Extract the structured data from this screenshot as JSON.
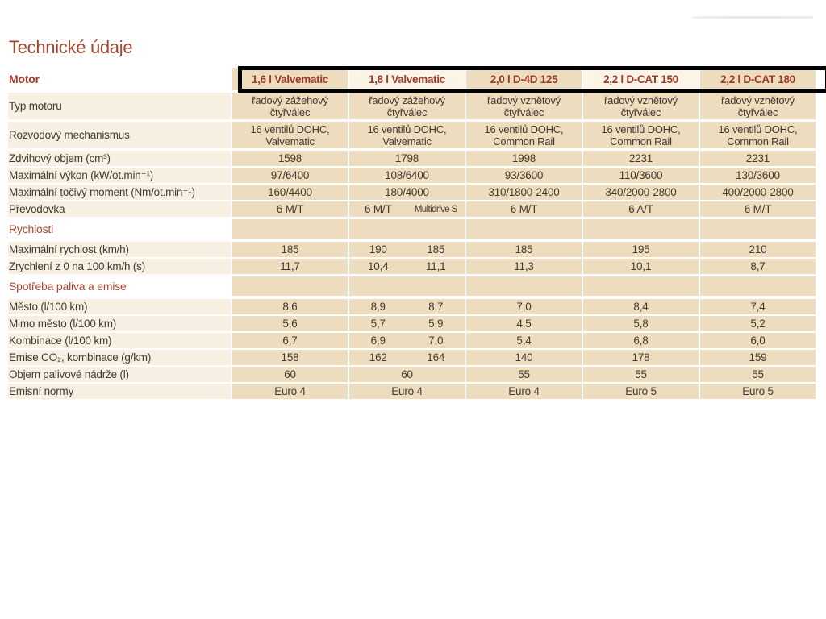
{
  "page": {
    "title": "Technické údaje"
  },
  "colors": {
    "accent_red": "#9d3b2a",
    "section_red": "#b0462f",
    "cell_beige": "#eddcbd",
    "label_cream": "#f7efe1",
    "header_cream": "#fbf4e7",
    "text_dark": "#433b30",
    "highlight_border": "#000000"
  },
  "table": {
    "header": {
      "label": "Motor",
      "columns": [
        "1,6 l Valvematic",
        "1,8 l Valvematic",
        "2,0 l D-4D 125",
        "2,2 l D-CAT 150",
        "2,2 l D-CAT 180"
      ]
    },
    "rows": [
      {
        "label": "Typ motoru",
        "cells": [
          "řadový zážehový čtyřválec",
          "řadový zážehový čtyřválec",
          "řadový vznětový čtyřválec",
          "řadový vznětový čtyřválec",
          "řadový vznětový čtyřválec"
        ]
      },
      {
        "label": "Rozvodový mechanismus",
        "cells": [
          "16 ventilů DOHC, Valvematic",
          "16 ventilů DOHC, Valvematic",
          "16 ventilů DOHC, Common Rail",
          "16 ventilů DOHC, Common Rail",
          "16 ventilů DOHC, Common Rail"
        ]
      },
      {
        "label": "Zdvihový objem (cm³)",
        "cells": [
          "1598",
          "1798",
          "1998",
          "2231",
          "2231"
        ]
      },
      {
        "label": "Maximální výkon (kW/ot.min⁻¹)",
        "cells": [
          "97/6400",
          "108/6400",
          "93/3600",
          "110/3600",
          "130/3600"
        ]
      },
      {
        "label": "Maximální točivý moment (Nm/ot.min⁻¹)",
        "cells": [
          "160/4400",
          "180/4000",
          "310/1800-2400",
          "340/2000-2800",
          "400/2000-2800"
        ]
      },
      {
        "label": "Převodovka",
        "cells": [
          "6 M/T",
          [
            "6 M/T",
            "Multidrive S"
          ],
          "6 M/T",
          "6 A/T",
          "6 M/T"
        ]
      },
      {
        "label": "Rychlosti",
        "section": true
      },
      {
        "label": "Maximální rychlost (km/h)",
        "cells": [
          "185",
          [
            "190",
            "185"
          ],
          "185",
          "195",
          "210"
        ]
      },
      {
        "label": "Zrychlení z 0 na 100 km/h (s)",
        "cells": [
          "11,7",
          [
            "10,4",
            "11,1"
          ],
          "11,3",
          "10,1",
          "8,7"
        ]
      },
      {
        "label": "Spotřeba paliva a emise",
        "section": true
      },
      {
        "label": "Město (l/100 km)",
        "cells": [
          "8,6",
          [
            "8,9",
            "8,7"
          ],
          "7,0",
          "8,4",
          "7,4"
        ]
      },
      {
        "label": "Mimo město (l/100 km)",
        "cells": [
          "5,6",
          [
            "5,7",
            "5,9"
          ],
          "4,5",
          "5,8",
          "5,2"
        ]
      },
      {
        "label": "Kombinace (l/100 km)",
        "cells": [
          "6,7",
          [
            "6,9",
            "7,0"
          ],
          "5,4",
          "6,8",
          "6,0"
        ]
      },
      {
        "label": "Emise CO₂, kombinace (g/km)",
        "cells": [
          "158",
          [
            "162",
            "164"
          ],
          "140",
          "178",
          "159"
        ]
      },
      {
        "label": "Objem palivové nádrže (l)",
        "cells": [
          "60",
          "60",
          "55",
          "55",
          "55"
        ]
      },
      {
        "label": "Emisní normy",
        "cells": [
          "Euro 4",
          "Euro 4",
          "Euro 4",
          "Euro 5",
          "Euro 5"
        ]
      }
    ]
  }
}
